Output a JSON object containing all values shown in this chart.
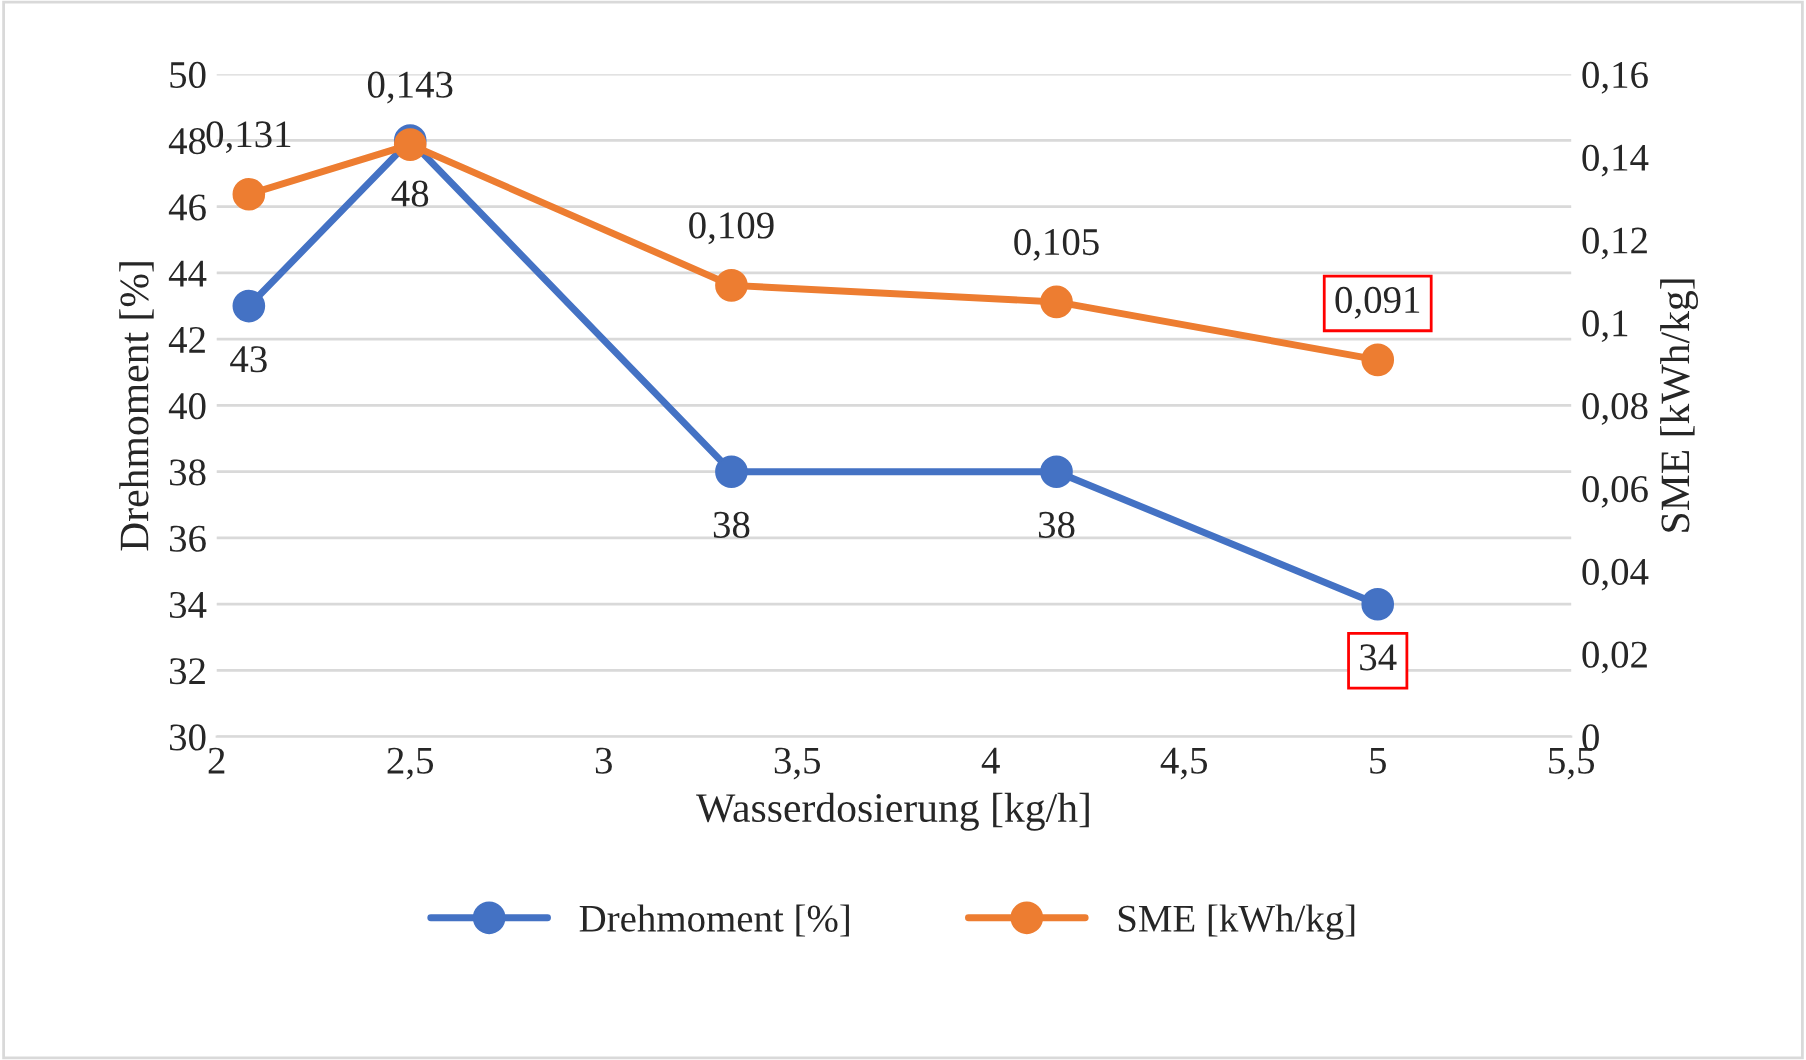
{
  "chart_data": {
    "type": "line",
    "xlabel": "Wasserdosierung [kg/h]",
    "ylabel": "Drehmoment [%]",
    "y2label": "SME [kWh/kg]",
    "x": [
      2.083,
      2.5,
      3.33,
      4.17,
      5.0
    ],
    "series": [
      {
        "name": "Drehmoment [%]",
        "color": "#4472c4",
        "values": [
          43,
          48,
          38,
          38,
          34
        ],
        "value_labels": [
          "43",
          "48",
          "38",
          "38",
          "34"
        ]
      },
      {
        "name": "SME [kWh/kg]",
        "color": "#ed7d31",
        "axis": "y2",
        "values": [
          0.131,
          0.143,
          0.109,
          0.105,
          0.091
        ],
        "value_labels": [
          "0,131",
          "0,143",
          "0,109",
          "0,105",
          "0,091"
        ]
      }
    ],
    "xlim": [
      2,
      5.5
    ],
    "xticks": [
      2,
      {
        "value": 2.5,
        "label": "2,5"
      },
      3,
      {
        "value": 3.5,
        "label": "3,5"
      },
      4,
      {
        "value": 4.5,
        "label": "4,5"
      },
      5,
      {
        "value": 5.5,
        "label": "5,5"
      }
    ],
    "ylim": [
      30,
      50
    ],
    "yticks": [
      30,
      32,
      34,
      36,
      38,
      40,
      42,
      44,
      46,
      48,
      50
    ],
    "y2lim": [
      0,
      0.16
    ],
    "y2ticks": [
      0,
      {
        "value": 0.02,
        "label": "0,02"
      },
      {
        "value": 0.04,
        "label": "0,04"
      },
      {
        "value": 0.06,
        "label": "0,06"
      },
      {
        "value": 0.08,
        "label": "0,08"
      },
      {
        "value": 0.1,
        "label": "0,1"
      },
      {
        "value": 0.12,
        "label": "0,12"
      },
      {
        "value": 0.14,
        "label": "0,14"
      },
      {
        "value": 0.16,
        "label": "0,16"
      }
    ],
    "grid": "y",
    "legend": "bottom",
    "marker": "circle",
    "line_style": "solid"
  }
}
